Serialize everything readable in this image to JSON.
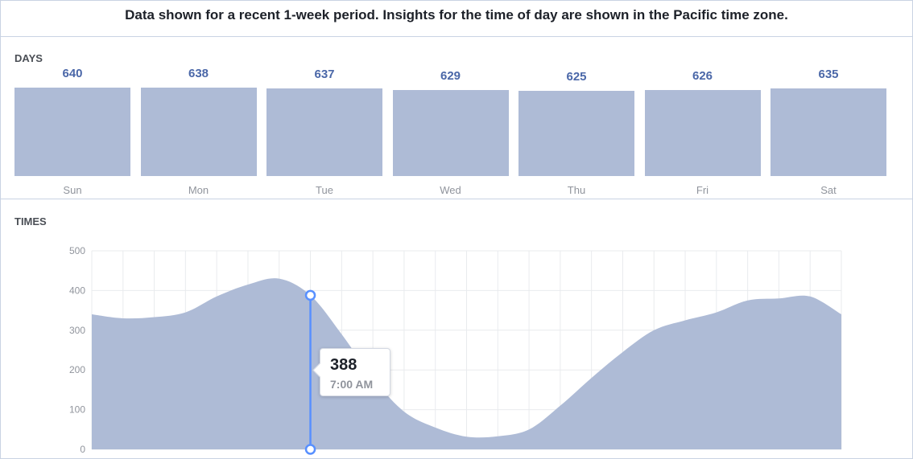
{
  "header": {
    "note": "Data shown for a recent 1-week period. Insights for the time of day are shown in the Pacific time zone."
  },
  "sections": {
    "days_label": "DAYS",
    "times_label": "TIMES"
  },
  "tooltip": {
    "value": "388",
    "time": "7:00 AM"
  },
  "chart_data": [
    {
      "type": "bar",
      "categories": [
        "Sun",
        "Mon",
        "Tue",
        "Wed",
        "Thu",
        "Fri",
        "Sat"
      ],
      "values": [
        640,
        638,
        637,
        629,
        625,
        626,
        635
      ]
    },
    {
      "type": "area",
      "x": [
        0,
        1,
        2,
        3,
        4,
        5,
        6,
        7,
        8,
        9,
        10,
        11,
        12,
        13,
        14,
        15,
        16,
        17,
        18,
        19,
        20,
        21,
        22,
        23,
        24
      ],
      "values": [
        340,
        330,
        333,
        345,
        385,
        415,
        430,
        388,
        290,
        180,
        95,
        55,
        32,
        33,
        50,
        110,
        180,
        245,
        300,
        325,
        345,
        375,
        380,
        385,
        340
      ],
      "ylim": [
        0,
        500
      ],
      "yticks": [
        0,
        100,
        200,
        300,
        400,
        500
      ],
      "grid": true,
      "highlight_index": 7,
      "colors": {
        "fill": "#aebbd6",
        "marker": "#5890ff",
        "grid": "#e9ebee",
        "tick": "#90949c"
      }
    }
  ]
}
